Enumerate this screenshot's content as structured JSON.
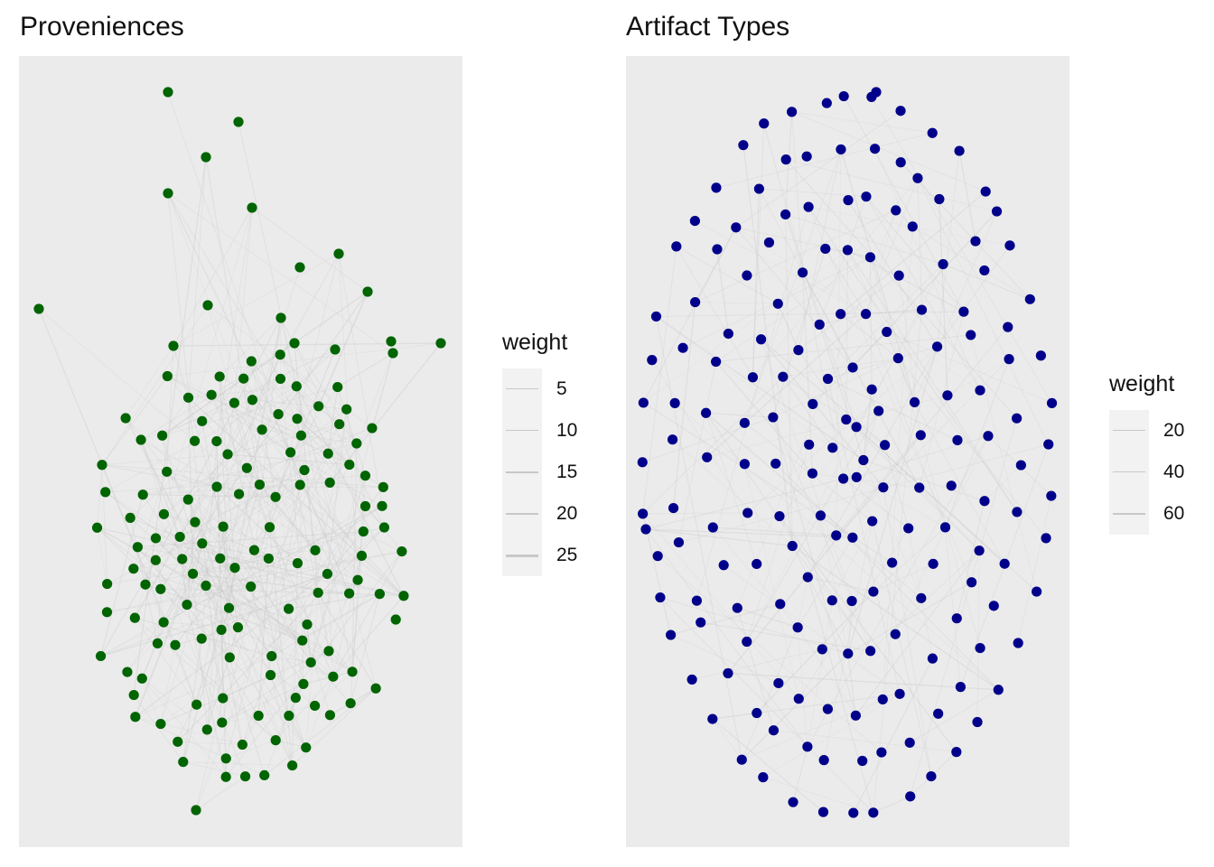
{
  "panels": [
    {
      "title": "Proveniences",
      "node_color": "#006400",
      "edge_color": "#c8c8c8",
      "legend": {
        "title": "weight",
        "labels": [
          "5",
          "10",
          "15",
          "20",
          "25"
        ]
      }
    },
    {
      "title": "Artifact Types",
      "node_color": "#00008b",
      "edge_color": "#c8c8c8",
      "legend": {
        "title": "weight",
        "labels": [
          "20",
          "40",
          "60"
        ]
      }
    }
  ]
}
